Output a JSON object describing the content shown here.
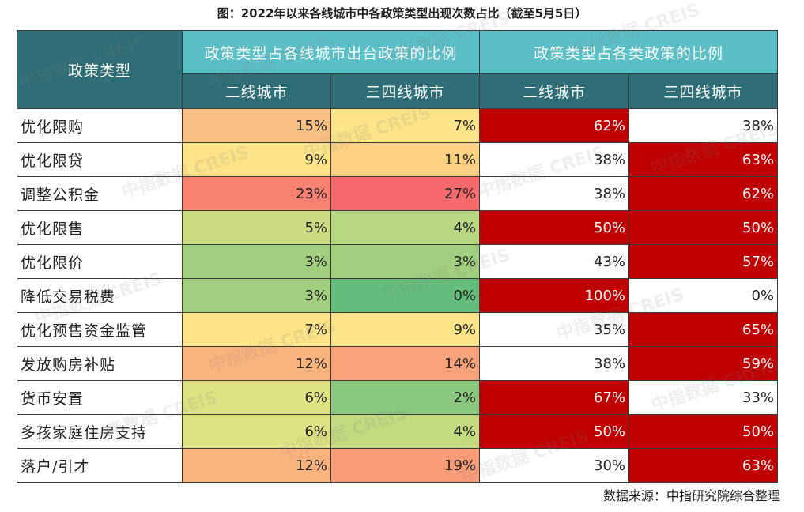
{
  "title": "图：2022年以来各线城市中各政策类型出现次数占比（截至5月5日）",
  "header": {
    "policy_type": "政策类型",
    "group1": "政策类型占各线城市出台政策的比例",
    "group2": "政策类型占各类政策的比例",
    "sub": [
      "二线城市",
      "三四线城市",
      "二线城市",
      "三四线城市"
    ]
  },
  "source": "数据来源：中指研究院综合整理",
  "watermark": "中指数据 CREIS",
  "chart_data": {
    "type": "table",
    "columns": [
      "二线城市",
      "三四线城市",
      "二线城市",
      "三四线城市"
    ],
    "rows": [
      {
        "label": "优化限购",
        "values": [
          "15%",
          "7%",
          "62%",
          "38%"
        ]
      },
      {
        "label": "优化限贷",
        "values": [
          "9%",
          "11%",
          "38%",
          "63%"
        ]
      },
      {
        "label": "调整公积金",
        "values": [
          "23%",
          "27%",
          "38%",
          "62%"
        ]
      },
      {
        "label": "优化限售",
        "values": [
          "5%",
          "4%",
          "50%",
          "50%"
        ]
      },
      {
        "label": "优化限价",
        "values": [
          "3%",
          "3%",
          "43%",
          "57%"
        ]
      },
      {
        "label": "降低交易税费",
        "values": [
          "3%",
          "0%",
          "100%",
          "0%"
        ]
      },
      {
        "label": "优化预售资金监管",
        "values": [
          "7%",
          "9%",
          "35%",
          "65%"
        ]
      },
      {
        "label": "发放购房补贴",
        "values": [
          "12%",
          "14%",
          "38%",
          "59%"
        ]
      },
      {
        "label": "货币安置",
        "values": [
          "6%",
          "2%",
          "67%",
          "33%"
        ]
      },
      {
        "label": "多孩家庭住房支持",
        "values": [
          "6%",
          "4%",
          "50%",
          "50%"
        ]
      },
      {
        "label": "落户/引才",
        "values": [
          "12%",
          "19%",
          "30%",
          "63%"
        ]
      }
    ],
    "fill_colors": [
      [
        "#f9bf84",
        "#fde488",
        "#c00000",
        "#ffffff"
      ],
      [
        "#fde488",
        "#fdd181",
        "#ffffff",
        "#c00000"
      ],
      [
        "#f8816f",
        "#f8696b",
        "#ffffff",
        "#c00000"
      ],
      [
        "#cbdc81",
        "#b6d67f",
        "#c00000",
        "#c00000"
      ],
      [
        "#a2cf7e",
        "#a2cf7e",
        "#ffffff",
        "#c00000"
      ],
      [
        "#a2cf7e",
        "#63be7b",
        "#c00000",
        "#ffffff"
      ],
      [
        "#fde488",
        "#fde488",
        "#ffffff",
        "#c00000"
      ],
      [
        "#fbb37e",
        "#faa279",
        "#ffffff",
        "#c00000"
      ],
      [
        "#dee283",
        "#8ac97d",
        "#c00000",
        "#ffffff"
      ],
      [
        "#dee283",
        "#c3da81",
        "#c00000",
        "#c00000"
      ],
      [
        "#fbb37e",
        "#f99b76",
        "#ffffff",
        "#c00000"
      ]
    ]
  }
}
